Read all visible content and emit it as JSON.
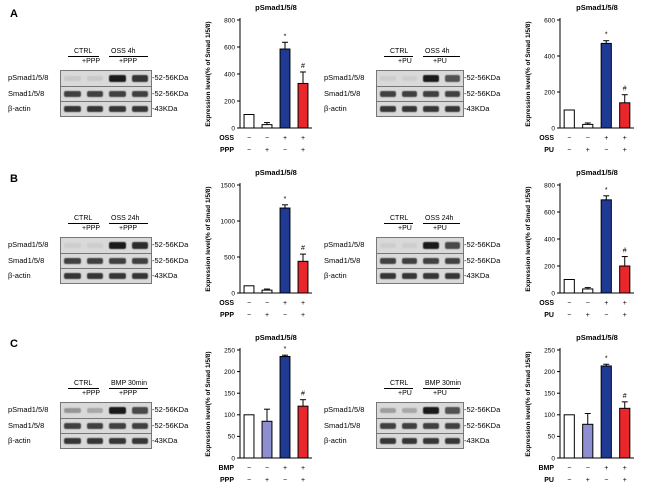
{
  "panels": [
    {
      "label": "A",
      "left": {
        "header_ctrl": "CTRL",
        "header_treat": "OSS 4h",
        "sub1": "+PPP",
        "sub2": "+PPP",
        "rows": [
          {
            "name": "pSmad1/5/8",
            "kda": "-52-56KDa",
            "intensity": [
              0.08,
              0.08,
              1.0,
              0.85
            ]
          },
          {
            "name": "Smad1/5/8",
            "kda": "-52-56KDa",
            "intensity": [
              0.8,
              0.8,
              0.8,
              0.8
            ]
          },
          {
            "name": "β-actin",
            "kda": "-43KDa",
            "intensity": [
              0.85,
              0.85,
              0.85,
              0.85
            ]
          }
        ]
      },
      "right": {
        "header_ctrl": "CTRL",
        "header_treat": "OSS 4h",
        "sub1": "+PU",
        "sub2": "+PU",
        "rows": [
          {
            "name": "pSmad1/5/8",
            "kda": "-52-56KDa",
            "intensity": [
              0.05,
              0.05,
              1.0,
              0.7
            ]
          },
          {
            "name": "Smad1/5/8",
            "kda": "-52-56KDa",
            "intensity": [
              0.8,
              0.8,
              0.8,
              0.8
            ]
          },
          {
            "name": "β-actin",
            "kda": "-43KDa",
            "intensity": [
              0.85,
              0.85,
              0.85,
              0.85
            ]
          }
        ]
      }
    },
    {
      "label": "B",
      "left": {
        "header_ctrl": "CTRL",
        "header_treat": "OSS 24h",
        "sub1": "+PPP",
        "sub2": "+PPP",
        "rows": [
          {
            "name": "pSmad1/5/8",
            "kda": "-52-56KDa",
            "intensity": [
              0.05,
              0.05,
              1.0,
              0.9
            ]
          },
          {
            "name": "Smad1/5/8",
            "kda": "-52-56KDa",
            "intensity": [
              0.8,
              0.8,
              0.8,
              0.8
            ]
          },
          {
            "name": "β-actin",
            "kda": "-43KDa",
            "intensity": [
              0.85,
              0.85,
              0.85,
              0.85
            ]
          }
        ]
      },
      "right": {
        "header_ctrl": "CTRL",
        "header_treat": "OSS 24h",
        "sub1": "+PU",
        "sub2": "+PU",
        "rows": [
          {
            "name": "pSmad1/5/8",
            "kda": "-52-56KDa",
            "intensity": [
              0.05,
              0.05,
              1.0,
              0.75
            ]
          },
          {
            "name": "Smad1/5/8",
            "kda": "-52-56KDa",
            "intensity": [
              0.8,
              0.8,
              0.8,
              0.8
            ]
          },
          {
            "name": "β-actin",
            "kda": "-43KDa",
            "intensity": [
              0.85,
              0.85,
              0.85,
              0.85
            ]
          }
        ]
      }
    },
    {
      "label": "C",
      "left": {
        "header_ctrl": "CTRL",
        "header_treat": "BMP 30min",
        "sub1": "+PPP",
        "sub2": "+PPP",
        "rows": [
          {
            "name": "pSmad1/5/8",
            "kda": "-52-56KDa",
            "intensity": [
              0.35,
              0.25,
              1.0,
              0.75
            ]
          },
          {
            "name": "Smad1/5/8",
            "kda": "-52-56KDa",
            "intensity": [
              0.8,
              0.8,
              0.8,
              0.8
            ]
          },
          {
            "name": "β-actin",
            "kda": "-43KDa",
            "intensity": [
              0.85,
              0.85,
              0.85,
              0.85
            ]
          }
        ]
      },
      "right": {
        "header_ctrl": "CTRL",
        "header_treat": "BMP 30min",
        "sub1": "+PU",
        "sub2": "+PU",
        "rows": [
          {
            "name": "pSmad1/5/8",
            "kda": "-52-56KDa",
            "intensity": [
              0.3,
              0.25,
              1.0,
              0.7
            ]
          },
          {
            "name": "Smad1/5/8",
            "kda": "-52-56KDa",
            "intensity": [
              0.8,
              0.8,
              0.8,
              0.8
            ]
          },
          {
            "name": "β-actin",
            "kda": "-43KDa",
            "intensity": [
              0.85,
              0.85,
              0.85,
              0.85
            ]
          }
        ]
      }
    }
  ],
  "chart_data": [
    {
      "type": "bar",
      "title": "pSmad1/5/8",
      "ylabel": "Expression level(% of Smad 1/5/8)",
      "ylim": [
        0,
        800
      ],
      "yticks": [
        0,
        200,
        400,
        600,
        800
      ],
      "values": [
        100,
        25,
        585,
        330
      ],
      "errors": [
        0,
        15,
        50,
        85
      ],
      "marks": [
        "",
        "",
        "*",
        "#"
      ],
      "colors": [
        "#ffffff",
        "#ffffff",
        "#1f3a93",
        "#e8262b"
      ],
      "factor_rows": [
        {
          "label": "OSS",
          "signs": [
            "−",
            "−",
            "+",
            "+"
          ]
        },
        {
          "label": "PPP",
          "signs": [
            "−",
            "+",
            "−",
            "+"
          ]
        }
      ]
    },
    {
      "type": "bar",
      "title": "pSmad1/5/8",
      "ylabel": "Expression level(% of Smad 1/5/8)",
      "ylim": [
        0,
        600
      ],
      "yticks": [
        0,
        200,
        400,
        600
      ],
      "values": [
        100,
        20,
        470,
        140
      ],
      "errors": [
        0,
        8,
        15,
        45
      ],
      "marks": [
        "",
        "",
        "*",
        "#"
      ],
      "colors": [
        "#ffffff",
        "#ffffff",
        "#1f3a93",
        "#e8262b"
      ],
      "factor_rows": [
        {
          "label": "OSS",
          "signs": [
            "−",
            "−",
            "+",
            "+"
          ]
        },
        {
          "label": "PU",
          "signs": [
            "−",
            "+",
            "−",
            "+"
          ]
        }
      ]
    },
    {
      "type": "bar",
      "title": "pSmad1/5/8",
      "ylabel": "Expression level(% of Smad 1/5/8)",
      "ylim": [
        0,
        1500
      ],
      "yticks": [
        0,
        500,
        1000,
        1500
      ],
      "values": [
        100,
        40,
        1180,
        440
      ],
      "errors": [
        0,
        15,
        45,
        100
      ],
      "marks": [
        "",
        "",
        "*",
        "#"
      ],
      "colors": [
        "#ffffff",
        "#ffffff",
        "#1f3a93",
        "#e8262b"
      ],
      "factor_rows": [
        {
          "label": "OSS",
          "signs": [
            "−",
            "−",
            "+",
            "+"
          ]
        },
        {
          "label": "PPP",
          "signs": [
            "−",
            "+",
            "−",
            "+"
          ]
        }
      ]
    },
    {
      "type": "bar",
      "title": "pSmad1/5/8",
      "ylabel": "Expression level(% of Smad 1/5/8)",
      "ylim": [
        0,
        800
      ],
      "yticks": [
        0,
        200,
        400,
        600,
        800
      ],
      "values": [
        100,
        30,
        690,
        200
      ],
      "errors": [
        0,
        10,
        30,
        70
      ],
      "marks": [
        "",
        "",
        "*",
        "#"
      ],
      "colors": [
        "#ffffff",
        "#ffffff",
        "#1f3a93",
        "#e8262b"
      ],
      "factor_rows": [
        {
          "label": "OSS",
          "signs": [
            "−",
            "−",
            "+",
            "+"
          ]
        },
        {
          "label": "PU",
          "signs": [
            "−",
            "+",
            "−",
            "+"
          ]
        }
      ]
    },
    {
      "type": "bar",
      "title": "pSmad1/5/8",
      "ylabel": "Expression level(% of Smad 1/5/8)",
      "ylim": [
        0,
        250
      ],
      "yticks": [
        0,
        50,
        100,
        150,
        200,
        250
      ],
      "values": [
        100,
        85,
        235,
        120
      ],
      "errors": [
        0,
        28,
        3,
        15
      ],
      "marks": [
        "",
        "",
        "*",
        "#"
      ],
      "colors": [
        "#ffffff",
        "#8e8fd0",
        "#1f3a93",
        "#e8262b"
      ],
      "factor_rows": [
        {
          "label": "BMP",
          "signs": [
            "−",
            "−",
            "+",
            "+"
          ]
        },
        {
          "label": "PPP",
          "signs": [
            "−",
            "+",
            "−",
            "+"
          ]
        }
      ]
    },
    {
      "type": "bar",
      "title": "pSmad1/5/8",
      "ylabel": "Expression level(% of Smad 1/5/8)",
      "ylim": [
        0,
        250
      ],
      "yticks": [
        0,
        50,
        100,
        150,
        200,
        250
      ],
      "values": [
        100,
        78,
        213,
        115
      ],
      "errors": [
        0,
        25,
        4,
        15
      ],
      "marks": [
        "",
        "",
        "*",
        "#"
      ],
      "colors": [
        "#ffffff",
        "#8e8fd0",
        "#1f3a93",
        "#e8262b"
      ],
      "factor_rows": [
        {
          "label": "BMP",
          "signs": [
            "−",
            "−",
            "+",
            "+"
          ]
        },
        {
          "label": "PU",
          "signs": [
            "−",
            "+",
            "−",
            "+"
          ]
        }
      ]
    }
  ]
}
